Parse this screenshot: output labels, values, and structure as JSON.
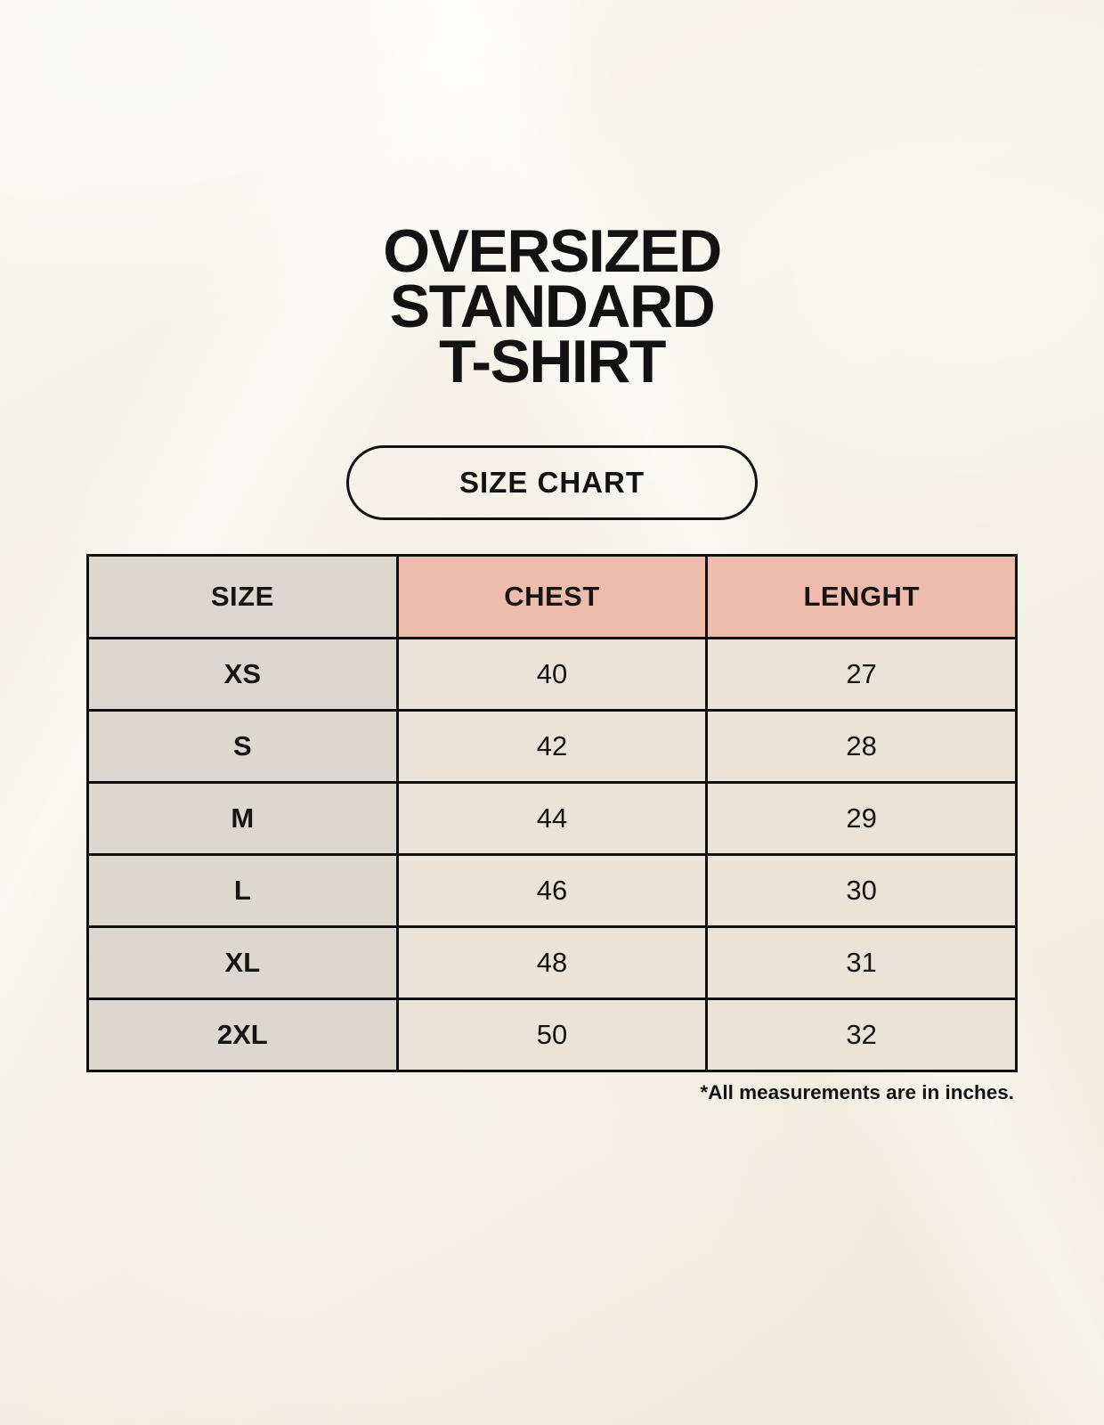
{
  "page": {
    "title_lines": [
      "OVERSIZED",
      "STANDARD",
      "T-SHIRT"
    ],
    "badge_label": "SIZE CHART",
    "footnote": "*All measurements are in inches."
  },
  "chart_data": {
    "type": "table",
    "title": "Oversized Standard T-Shirt Size Chart",
    "columns": [
      "SIZE",
      "CHEST",
      "LENGHT"
    ],
    "rows": [
      [
        "XS",
        "40",
        "27"
      ],
      [
        "S",
        "42",
        "28"
      ],
      [
        "M",
        "44",
        "29"
      ],
      [
        "L",
        "46",
        "30"
      ],
      [
        "XL",
        "48",
        "31"
      ],
      [
        "2XL",
        "50",
        "32"
      ]
    ],
    "units": "inches"
  },
  "colors": {
    "background": "#f7f2e9",
    "header_pink": "#eebcac",
    "size_column_gray": "#ddd7d1",
    "data_cell_cream": "#eae3d7",
    "border_black": "#101010",
    "text": "#121212"
  }
}
